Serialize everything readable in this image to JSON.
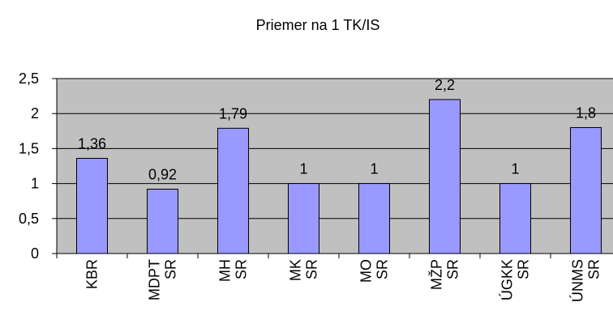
{
  "chart_data": {
    "type": "bar",
    "title": "Priemer na 1 TK/IS",
    "categories": [
      "KBR",
      "MDPT SR",
      "MH SR",
      "MK SR",
      "MO SR",
      "MŽP SR",
      "ÚGKK SR",
      "ÚNMS SR"
    ],
    "values": [
      1.36,
      0.92,
      1.79,
      1,
      1,
      2.2,
      1,
      1.8
    ],
    "value_labels": [
      "1,36",
      "0,92",
      "1,79",
      "1",
      "1",
      "2,2",
      "1",
      "1,8"
    ],
    "color": "#9999ff",
    "ylim": [
      0,
      2.5
    ],
    "yticks": [
      0,
      {
        "value": 0.5,
        "label": "0,5"
      },
      1,
      {
        "value": 1.5,
        "label": "1,5"
      },
      2,
      {
        "value": 2.5,
        "label": "2,5"
      }
    ],
    "grid": true
  }
}
